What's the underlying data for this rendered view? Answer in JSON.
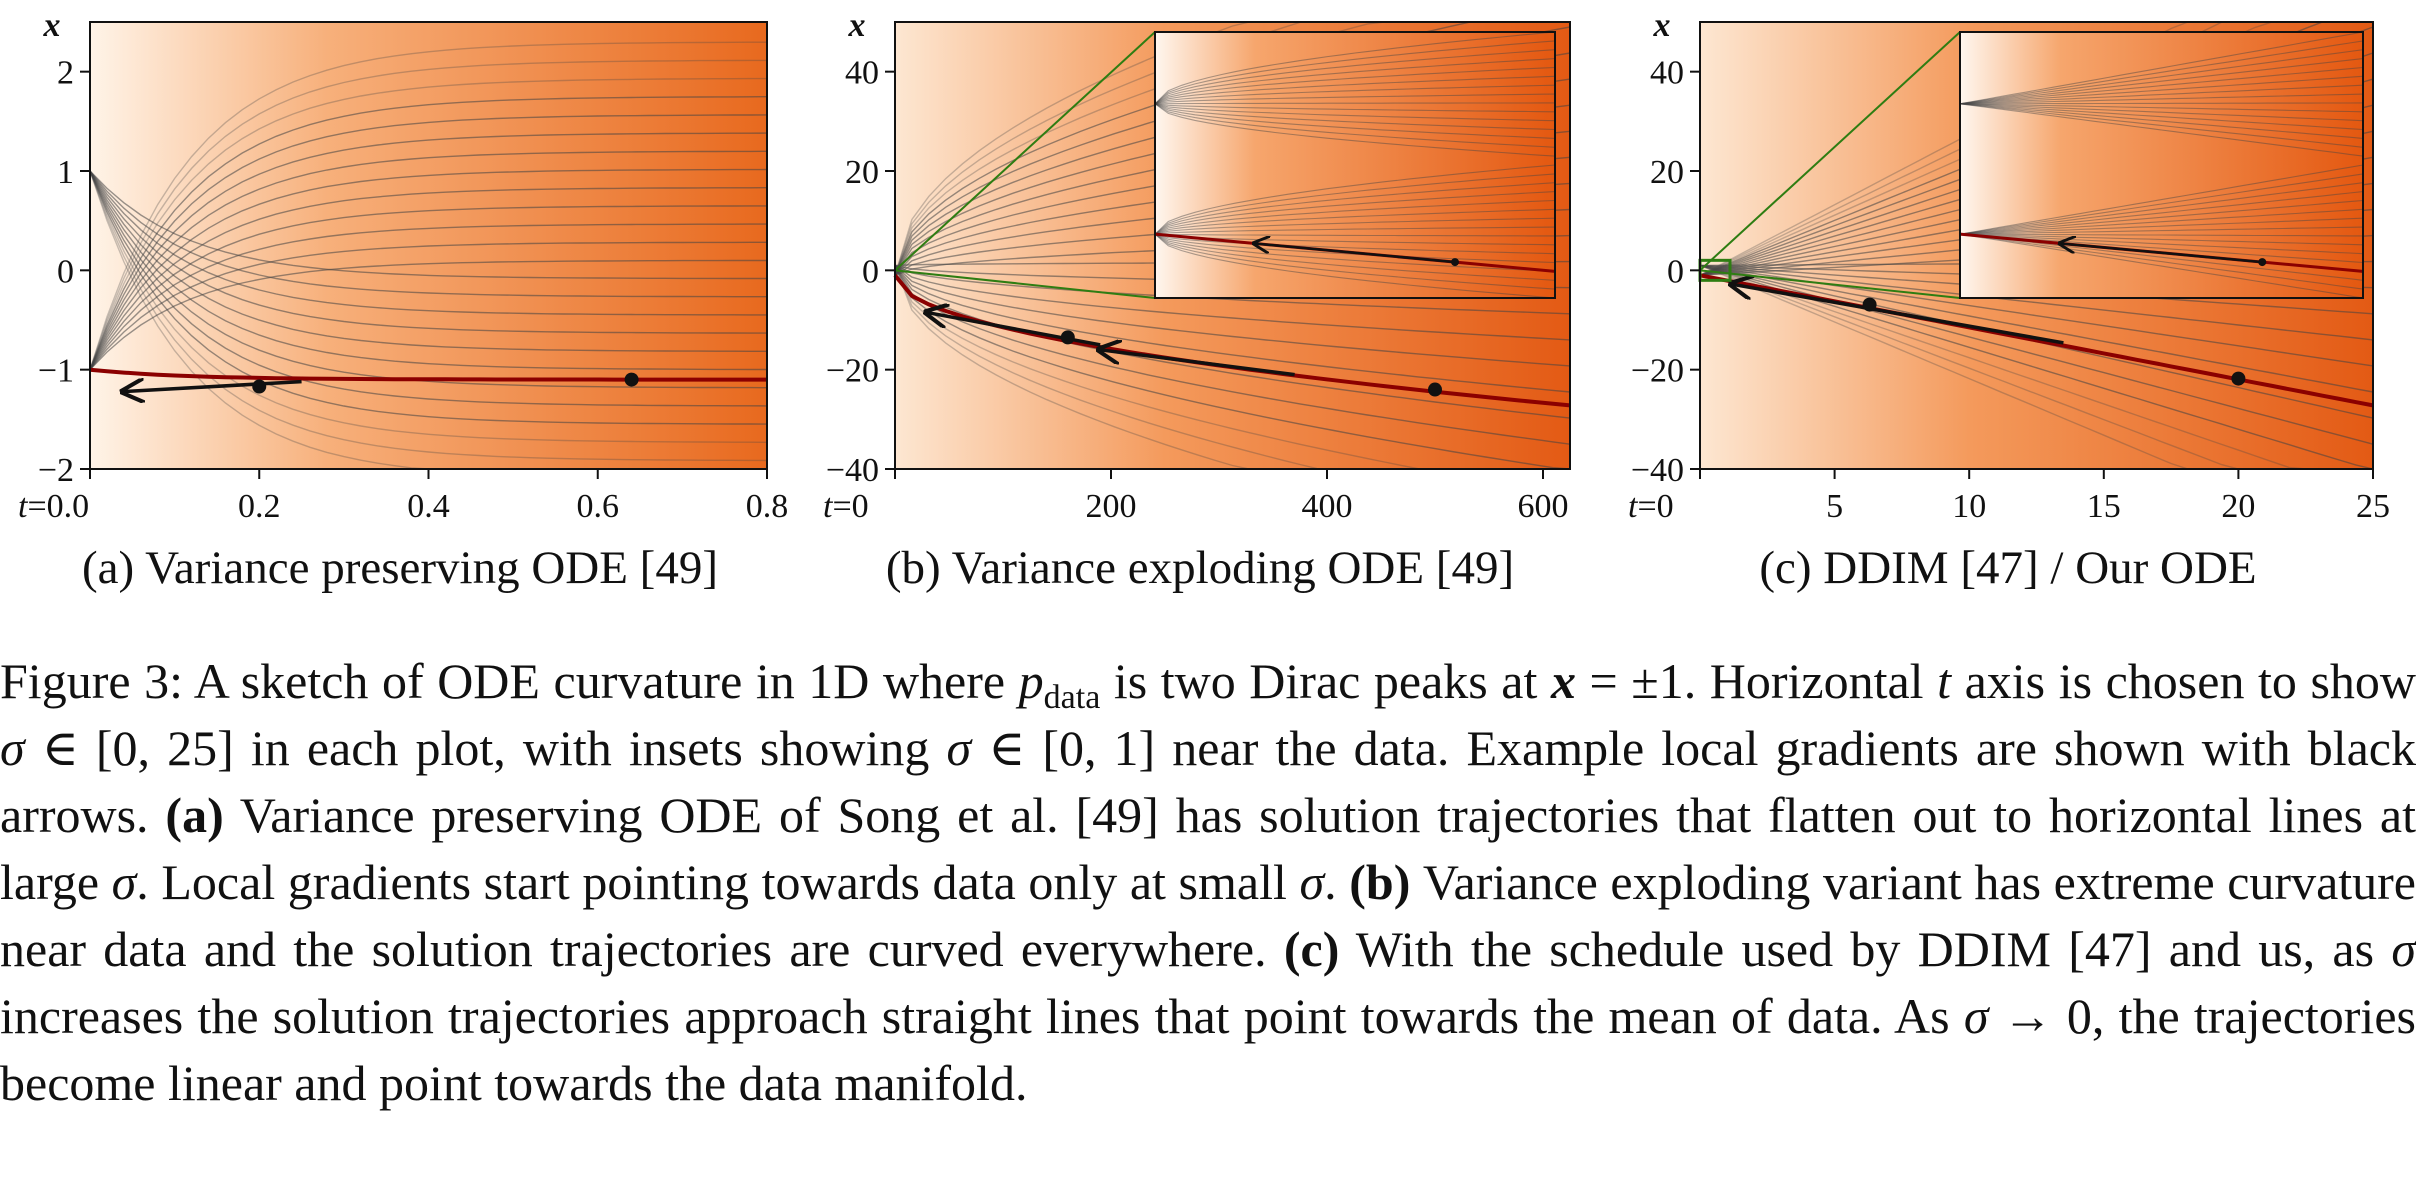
{
  "figure": {
    "sublabels": [
      "(a) Variance preserving ODE [49]",
      "(b) Variance exploding ODE [49]",
      "(c) DDIM [47] / Our ODE"
    ],
    "y_axis_label": "x",
    "t_prefix": "t=",
    "colors": {
      "density_light": "#fff4e8",
      "density_dark": "#e3520f",
      "trajectory": "#444444",
      "highlight": "#8b0000",
      "inset_outline": "#2e7d12",
      "arrow": "#111111"
    }
  },
  "chart_data": [
    {
      "type": "line",
      "title": "(a) Variance preserving ODE [49]",
      "xlabel": "t",
      "ylabel": "x",
      "xlim": [
        0,
        0.8
      ],
      "ylim": [
        -2,
        2.5
      ],
      "xticks": [
        0,
        0.2,
        0.4,
        0.6,
        0.8
      ],
      "xtick_labels": [
        "0.0",
        "0.2",
        "0.4",
        "0.6",
        "0.8"
      ],
      "yticks": [
        -2,
        -1,
        0,
        1,
        2
      ],
      "ytick_labels": [
        "−2",
        "−1",
        "0",
        "1",
        "2"
      ],
      "data_points": [
        1,
        -1
      ],
      "highlight_trajectory_end": -1.1,
      "sample_points": [
        [
          0.2,
          -1.17
        ],
        [
          0.64,
          -1.1
        ]
      ],
      "arrows": [
        [
          0.25,
          -1.12,
          0.04,
          -1.22
        ]
      ]
    },
    {
      "type": "line",
      "title": "(b) Variance exploding ODE [49]",
      "xlabel": "t",
      "ylabel": "x",
      "xlim": [
        0,
        625
      ],
      "ylim": [
        -40,
        50
      ],
      "xticks": [
        0,
        200,
        400,
        600
      ],
      "xtick_labels": [
        "0",
        "200",
        "400",
        "600"
      ],
      "yticks": [
        -40,
        -20,
        0,
        20,
        40
      ],
      "ytick_labels": [
        "−40",
        "−20",
        "0",
        "20",
        "40"
      ],
      "data_points": [
        1,
        -1
      ],
      "sample_points": [
        [
          160,
          -13.5
        ],
        [
          500,
          -24
        ]
      ],
      "arrows": [
        [
          190,
          -15,
          30,
          -8.5
        ],
        [
          370,
          -21,
          190,
          -16
        ]
      ],
      "inset": true
    },
    {
      "type": "line",
      "title": "(c) DDIM [47] / Our ODE",
      "xlabel": "t",
      "ylabel": "x",
      "xlim": [
        0,
        25
      ],
      "ylim": [
        -40,
        50
      ],
      "xticks": [
        0,
        5,
        10,
        15,
        20,
        25
      ],
      "xtick_labels": [
        "0",
        "5",
        "10",
        "15",
        "20",
        "25"
      ],
      "yticks": [
        -40,
        -20,
        0,
        20,
        40
      ],
      "ytick_labels": [
        "−40",
        "−20",
        "0",
        "20",
        "40"
      ],
      "data_points": [
        1,
        -1
      ],
      "sample_points": [
        [
          6.3,
          -6.9
        ],
        [
          20,
          -21.8
        ]
      ],
      "arrows": [
        [
          13.5,
          -14.6,
          1.2,
          -2.8
        ]
      ],
      "inset": true
    }
  ],
  "caption": {
    "fig_label": "Figure 3:",
    "p1": " A sketch of ODE curvature in 1D where ",
    "p_sym": "p",
    "p_sub": "data",
    "p2": " is two Dirac peaks at ",
    "x_sym": "x",
    "p3": " = ±1. Horizontal ",
    "t_sym": "t",
    "p4": " axis is chosen to show ",
    "sigma": "σ",
    "p5": " ∈ [0, 25] in each plot, with insets showing ",
    "p6": " ∈ [0, 1] near the data. Example local gradients are shown with black arrows. ",
    "a_label": "(a)",
    "p7": " Variance preserving ODE of Song et al. [49] has solution trajectories that flatten out to horizontal lines at large ",
    "p8": ". Local gradients start pointing towards data only at small ",
    "p9": ". ",
    "b_label": "(b)",
    "p10": " Variance exploding variant has extreme curvature near data and the solution trajectories are curved everywhere. ",
    "c_label": "(c)",
    "p11": " With the schedule used by DDIM [47] and us, as ",
    "p12": " increases the solution trajectories approach straight lines that point towards the mean of data. As ",
    "p13": " → 0, the trajectories become linear and point towards the data manifold."
  }
}
